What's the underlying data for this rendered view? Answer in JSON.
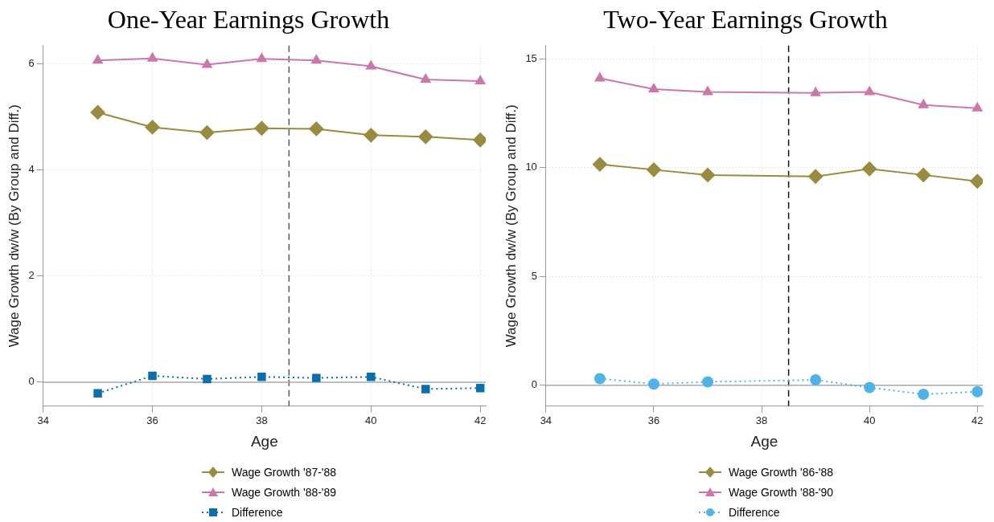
{
  "chart_data": [
    {
      "type": "line",
      "title": "One-Year Earnings Growth",
      "xlabel": "Age",
      "ylabel": "Wage Growth dw/w (By Group and Diff.)",
      "x": [
        35,
        36,
        37,
        38,
        39,
        40,
        41,
        42
      ],
      "series": [
        {
          "name": "Wage Growth '87-'88",
          "color": "#998b3f",
          "marker": "diamond",
          "line_style": "solid",
          "values": [
            5.09,
            4.81,
            4.71,
            4.79,
            4.78,
            4.66,
            4.63,
            4.57
          ]
        },
        {
          "name": "Wage Growth '88-'89",
          "color": "#cc77ac",
          "marker": "triangle",
          "line_style": "solid",
          "values": [
            6.07,
            6.11,
            5.99,
            6.1,
            6.07,
            5.96,
            5.71,
            5.68
          ]
        },
        {
          "name": "Difference",
          "color": "#0b6fad",
          "marker": "square",
          "line_style": "dotted",
          "values": [
            -0.21,
            0.12,
            0.06,
            0.1,
            0.08,
            0.1,
            -0.13,
            -0.11
          ]
        }
      ],
      "xlim": [
        34,
        42.1
      ],
      "xticks": [
        34,
        36,
        38,
        40,
        42
      ],
      "ylim": [
        -0.45,
        6.35
      ],
      "yticks": [
        0,
        2,
        4,
        6
      ],
      "ref_lines": [
        {
          "axis": "x",
          "value": 38.5,
          "line_style": "dashed",
          "color": "#555555"
        },
        {
          "axis": "y",
          "value": 0,
          "line_style": "solid",
          "color": "#aaaaaa"
        }
      ],
      "grid": true,
      "legend": "bottom"
    },
    {
      "type": "line",
      "title": "Two-Year Earnings Growth",
      "xlabel": "Age",
      "ylabel": "Wage Growth dw/w (By Group and Diff.)",
      "x": [
        35,
        36,
        37,
        39,
        40,
        41,
        42
      ],
      "series": [
        {
          "name": "Wage Growth '86-'88",
          "color": "#998b3f",
          "marker": "diamond",
          "line_style": "solid",
          "values": [
            10.15,
            9.9,
            9.66,
            9.59,
            9.94,
            9.66,
            9.37
          ]
        },
        {
          "name": "Wage Growth '88-'90",
          "color": "#cc77ac",
          "marker": "triangle",
          "line_style": "solid",
          "values": [
            14.1,
            13.6,
            13.47,
            13.43,
            13.47,
            12.87,
            12.73
          ]
        },
        {
          "name": "Difference",
          "color": "#4fb3e8",
          "marker": "circle",
          "line_style": "dotted",
          "values": [
            0.31,
            0.06,
            0.16,
            0.25,
            -0.1,
            -0.41,
            -0.29
          ]
        }
      ],
      "xlim": [
        34,
        42.1
      ],
      "xticks": [
        34,
        36,
        38,
        40,
        42
      ],
      "ylim": [
        -0.95,
        15.6
      ],
      "yticks": [
        0,
        5,
        10,
        15
      ],
      "ref_lines": [
        {
          "axis": "x",
          "value": 38.5,
          "line_style": "dashed",
          "color": "#111111"
        },
        {
          "axis": "y",
          "value": 0,
          "line_style": "solid",
          "color": "#aaaaaa"
        }
      ],
      "grid": true,
      "legend": "bottom"
    }
  ]
}
